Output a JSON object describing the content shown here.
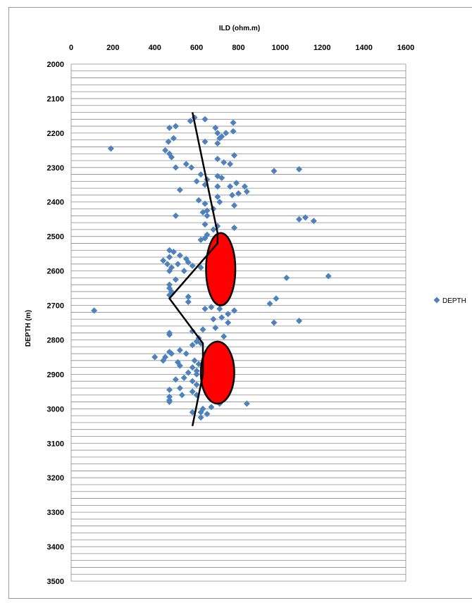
{
  "chart_data": {
    "type": "scatter",
    "title": "",
    "xlabel": "ILD (ohm.m)",
    "ylabel": "DEPTH (m)",
    "xlim": [
      0,
      1600
    ],
    "ylim": [
      2000,
      3500
    ],
    "y_inverted": true,
    "x_axis_position": "top",
    "x_ticks": [
      "0",
      "200",
      "400",
      "600",
      "800",
      "1000",
      "1200",
      "1400",
      "1600"
    ],
    "y_ticks": [
      "2000",
      "2100",
      "2200",
      "2300",
      "2400",
      "2500",
      "2600",
      "2700",
      "2800",
      "2900",
      "3000",
      "3100",
      "3200",
      "3300",
      "3400",
      "3500"
    ],
    "grid": "horizontal, every 20 m",
    "legend": "right",
    "series": [
      {
        "name": "DEPTH",
        "marker": "diamond",
        "color": "#4f81bd",
        "points": [
          [
            590,
            2155
          ],
          [
            570,
            2165
          ],
          [
            640,
            2160
          ],
          [
            775,
            2170
          ],
          [
            470,
            2185
          ],
          [
            500,
            2180
          ],
          [
            690,
            2185
          ],
          [
            740,
            2200
          ],
          [
            775,
            2195
          ],
          [
            700,
            2200
          ],
          [
            720,
            2210
          ],
          [
            490,
            2215
          ],
          [
            710,
            2215
          ],
          [
            465,
            2225
          ],
          [
            640,
            2225
          ],
          [
            700,
            2230
          ],
          [
            190,
            2245
          ],
          [
            450,
            2250
          ],
          [
            470,
            2260
          ],
          [
            480,
            2270
          ],
          [
            780,
            2265
          ],
          [
            700,
            2275
          ],
          [
            730,
            2285
          ],
          [
            760,
            2290
          ],
          [
            550,
            2290
          ],
          [
            575,
            2300
          ],
          [
            500,
            2300
          ],
          [
            970,
            2310
          ],
          [
            1090,
            2305
          ],
          [
            620,
            2320
          ],
          [
            700,
            2325
          ],
          [
            720,
            2330
          ],
          [
            650,
            2335
          ],
          [
            600,
            2340
          ],
          [
            790,
            2345
          ],
          [
            760,
            2355
          ],
          [
            830,
            2355
          ],
          [
            640,
            2350
          ],
          [
            700,
            2355
          ],
          [
            520,
            2365
          ],
          [
            840,
            2370
          ],
          [
            800,
            2375
          ],
          [
            770,
            2380
          ],
          [
            700,
            2385
          ],
          [
            610,
            2395
          ],
          [
            710,
            2400
          ],
          [
            640,
            2405
          ],
          [
            780,
            2410
          ],
          [
            680,
            2420
          ],
          [
            650,
            2425
          ],
          [
            630,
            2430
          ],
          [
            650,
            2440
          ],
          [
            500,
            2440
          ],
          [
            1120,
            2445
          ],
          [
            1090,
            2450
          ],
          [
            1160,
            2455
          ],
          [
            640,
            2465
          ],
          [
            700,
            2470
          ],
          [
            780,
            2475
          ],
          [
            680,
            2480
          ],
          [
            650,
            2495
          ],
          [
            640,
            2505
          ],
          [
            620,
            2510
          ],
          [
            700,
            2515
          ],
          [
            470,
            2540
          ],
          [
            490,
            2545
          ],
          [
            520,
            2555
          ],
          [
            470,
            2560
          ],
          [
            550,
            2565
          ],
          [
            440,
            2570
          ],
          [
            460,
            2580
          ],
          [
            510,
            2580
          ],
          [
            480,
            2590
          ],
          [
            560,
            2575
          ],
          [
            580,
            2585
          ],
          [
            470,
            2600
          ],
          [
            540,
            2600
          ],
          [
            620,
            2590
          ],
          [
            1230,
            2615
          ],
          [
            1030,
            2620
          ],
          [
            500,
            2625
          ],
          [
            470,
            2640
          ],
          [
            470,
            2650
          ],
          [
            480,
            2660
          ],
          [
            470,
            2670
          ],
          [
            560,
            2675
          ],
          [
            560,
            2690
          ],
          [
            980,
            2680
          ],
          [
            950,
            2695
          ],
          [
            110,
            2715
          ],
          [
            640,
            2710
          ],
          [
            670,
            2705
          ],
          [
            710,
            2710
          ],
          [
            780,
            2715
          ],
          [
            750,
            2725
          ],
          [
            720,
            2735
          ],
          [
            680,
            2740
          ],
          [
            1090,
            2745
          ],
          [
            970,
            2750
          ],
          [
            750,
            2750
          ],
          [
            690,
            2765
          ],
          [
            630,
            2770
          ],
          [
            580,
            2775
          ],
          [
            470,
            2780
          ],
          [
            470,
            2785
          ],
          [
            730,
            2790
          ],
          [
            610,
            2795
          ],
          [
            600,
            2805
          ],
          [
            580,
            2815
          ],
          [
            620,
            2810
          ],
          [
            520,
            2830
          ],
          [
            470,
            2835
          ],
          [
            480,
            2840
          ],
          [
            550,
            2840
          ],
          [
            450,
            2850
          ],
          [
            400,
            2850
          ],
          [
            440,
            2860
          ],
          [
            590,
            2860
          ],
          [
            510,
            2865
          ],
          [
            520,
            2875
          ],
          [
            610,
            2870
          ],
          [
            580,
            2880
          ],
          [
            600,
            2890
          ],
          [
            560,
            2895
          ],
          [
            600,
            2900
          ],
          [
            540,
            2910
          ],
          [
            500,
            2915
          ],
          [
            580,
            2920
          ],
          [
            600,
            2930
          ],
          [
            520,
            2940
          ],
          [
            470,
            2945
          ],
          [
            580,
            2950
          ],
          [
            530,
            2960
          ],
          [
            470,
            2965
          ],
          [
            600,
            2960
          ],
          [
            470,
            2975
          ],
          [
            470,
            2980
          ],
          [
            840,
            2985
          ],
          [
            710,
            2985
          ],
          [
            670,
            2995
          ],
          [
            630,
            3000
          ],
          [
            620,
            3010
          ],
          [
            580,
            3010
          ],
          [
            650,
            3015
          ],
          [
            620,
            3025
          ]
        ]
      }
    ],
    "trend_line": {
      "color": "#000000",
      "points": [
        [
          580,
          2140
        ],
        [
          700,
          2490
        ],
        [
          700,
          2520
        ],
        [
          470,
          2680
        ],
        [
          630,
          2810
        ],
        [
          630,
          2900
        ],
        [
          580,
          3050
        ]
      ]
    },
    "annotations": [
      {
        "shape": "ellipse",
        "color": "#ff0000",
        "stroke": "#000000",
        "cx": 715,
        "cy": 2595,
        "rx": 70,
        "ry": 105
      },
      {
        "shape": "ellipse",
        "color": "#ff0000",
        "stroke": "#000000",
        "cx": 700,
        "cy": 2895,
        "rx": 80,
        "ry": 90
      }
    ]
  }
}
